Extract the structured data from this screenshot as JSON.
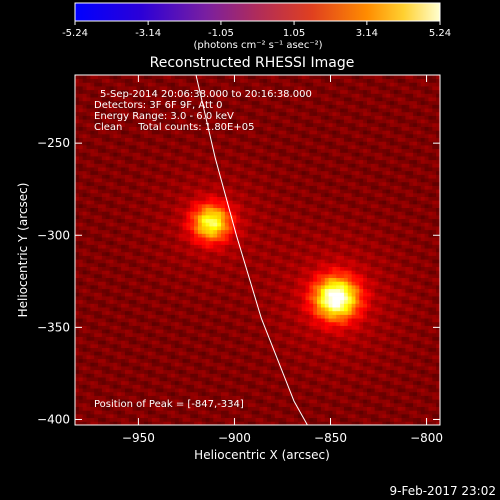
{
  "colorbar": {
    "ticks": [
      "-5.24",
      "-3.14",
      "-1.05",
      "1.05",
      "3.14",
      "5.24"
    ],
    "label": "(photons cm⁻² s⁻¹ asec⁻²)",
    "vmin": -5.24,
    "vmax": 5.24
  },
  "title": "Reconstructed RHESSI Image",
  "info": {
    "time": "5-Sep-2014 20:06:38.000 to 20:16:38.000",
    "detectors": "Detectors: 3F 6F 9F, Att 0",
    "energy": "Energy Range: 3.0 - 6.0 keV",
    "clean": "Clean     Total counts: 1.80E+05",
    "peak": "Position of Peak = [-847,-334]"
  },
  "footer": {
    "date": "9-Feb-2017 23:02"
  },
  "chart_data": {
    "type": "heatmap",
    "title": "Reconstructed RHESSI Image",
    "xlabel": "Heliocentric X (arcsec)",
    "ylabel": "Heliocentric Y (arcsec)",
    "xlim": [
      -983,
      -793
    ],
    "ylim": [
      -403,
      -213
    ],
    "xticks": [
      -950,
      -900,
      -850,
      -800
    ],
    "yticks": [
      -250,
      -300,
      -350,
      -400
    ],
    "xtick_labels": [
      "−950",
      "−900",
      "−850",
      "−800"
    ],
    "ytick_labels": [
      "−250",
      "−300",
      "−350",
      "−400"
    ],
    "colormap": "hot",
    "background_level": 0.2,
    "sources": [
      {
        "x": -912,
        "y": -293,
        "amplitude": 0.6,
        "sigma": 7
      },
      {
        "x": -847,
        "y": -334,
        "amplitude": 0.78,
        "sigma": 8
      }
    ],
    "limb_curve": [
      [
        -920,
        -213
      ],
      [
        -910,
        -258
      ],
      [
        -899,
        -300
      ],
      [
        -886,
        -345
      ],
      [
        -869,
        -390
      ],
      [
        -862,
        -403
      ]
    ],
    "peak": [
      -847,
      -334
    ]
  }
}
